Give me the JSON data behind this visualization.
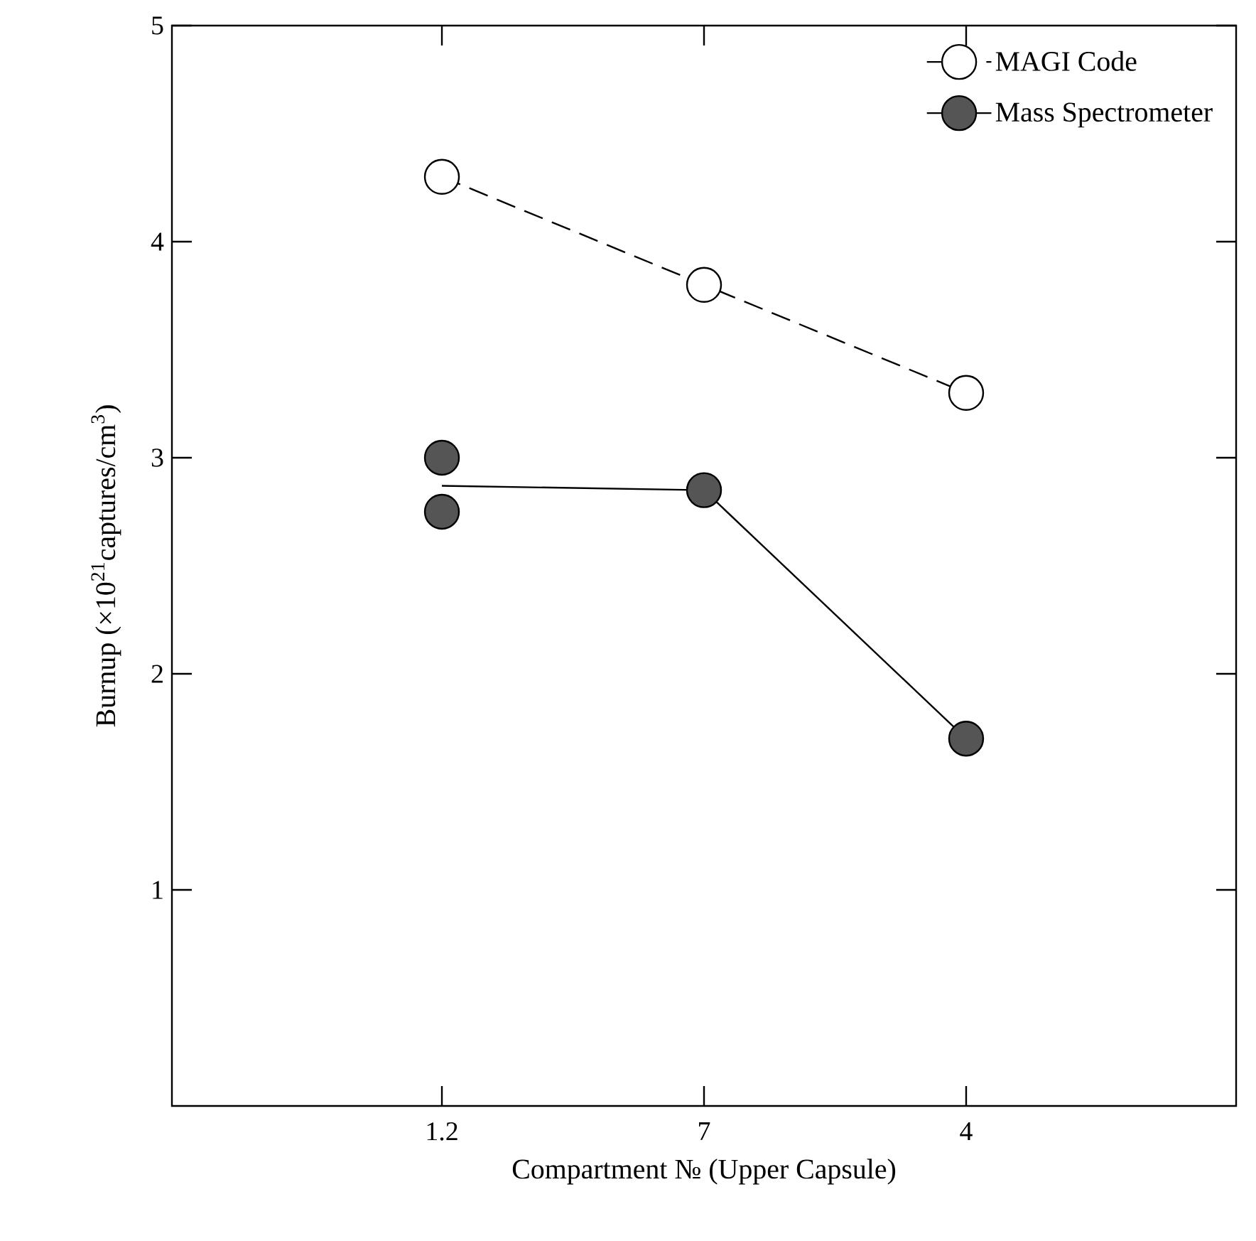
{
  "chart_data": {
    "type": "line",
    "xlabel": "Compartment № (Upper Capsule)",
    "ylabel": "Burnup (×10$^{21}$captures/cm$^{3}$)",
    "categories": [
      "1.2",
      "7",
      "4"
    ],
    "ylim": [
      0,
      5
    ],
    "yticks": [
      1,
      2,
      3,
      4,
      5
    ],
    "legend": "top right",
    "grid": false,
    "series": [
      {
        "name": "MAGI Code",
        "color": "#ffffff",
        "values": [
          4.3,
          3.8,
          3.3
        ],
        "line_style": "dashed",
        "marker": "circle"
      },
      {
        "name": "Mass Spectrometer",
        "type": "scatter",
        "color": "#555555",
        "x": [
          "1.2",
          "1.2",
          "7",
          "4"
        ],
        "values": [
          3.0,
          2.75,
          2.85,
          1.7
        ],
        "marker": "circle"
      },
      {
        "color": "#000000",
        "values": [
          2.87,
          2.85,
          1.7
        ],
        "line_style": "solid",
        "marker": "none"
      }
    ]
  }
}
